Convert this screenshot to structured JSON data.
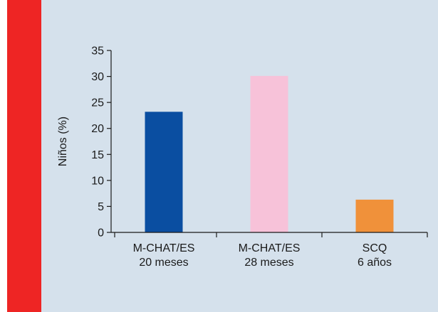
{
  "chart_data": {
    "type": "bar",
    "title": "",
    "xlabel": "",
    "ylabel": "Niños (%)",
    "ylim": [
      0,
      35
    ],
    "yticks": [
      0,
      5,
      10,
      15,
      20,
      25,
      30,
      35
    ],
    "grid": false,
    "categories": [
      [
        "M-CHAT/ES",
        "20 meses"
      ],
      [
        "M-CHAT/ES",
        "28 meses"
      ],
      [
        "SCQ",
        "6 años"
      ]
    ],
    "values": [
      23.2,
      30.1,
      6.3
    ],
    "bar_colors": [
      "#0a4ea1",
      "#f7c2d9",
      "#f0913a"
    ]
  },
  "colors": {
    "accent_band": "#ee2524",
    "panel_background": "#d5e1ec",
    "axis": "#1a1a1a"
  }
}
